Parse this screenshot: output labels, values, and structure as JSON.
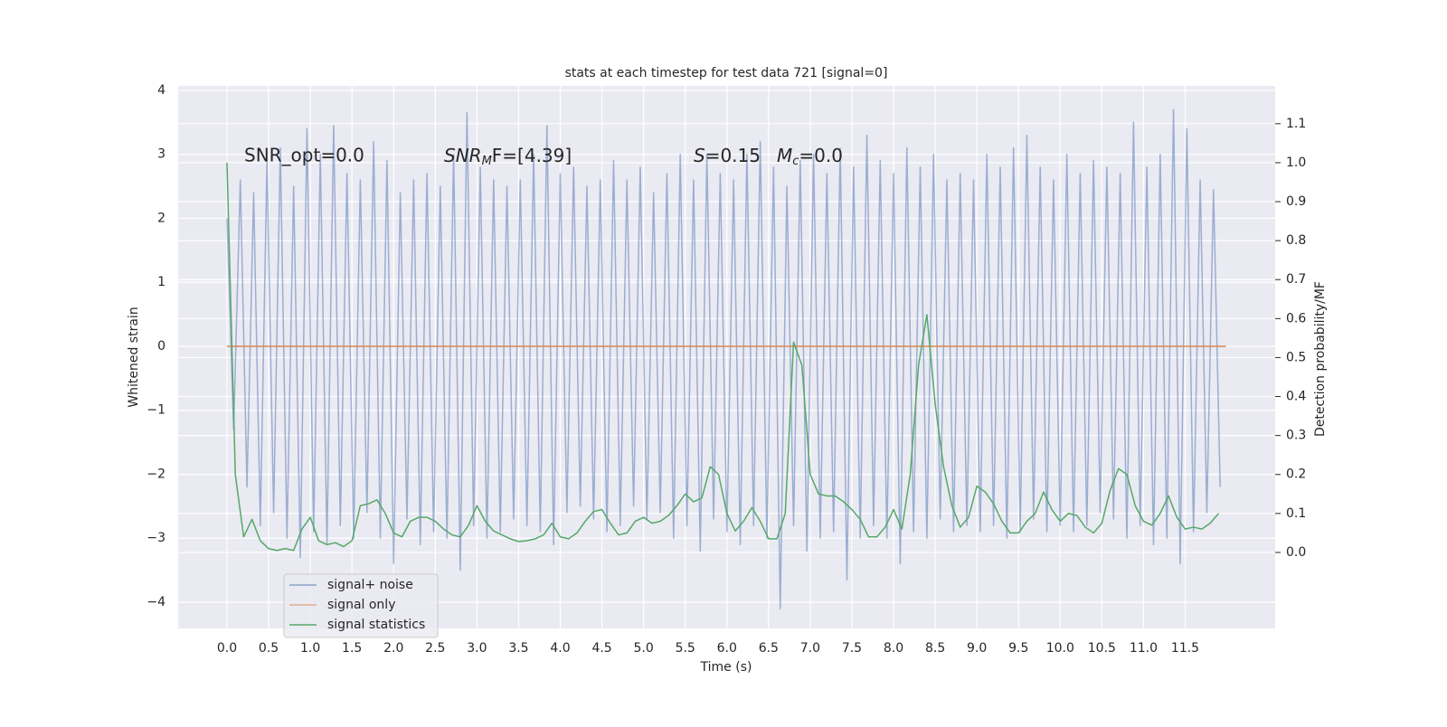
{
  "chart_data": {
    "type": "line",
    "title": "stats at each timestep for test data 721 [signal=0]",
    "xlabel": "Time (s)",
    "ylabel": "Whitened strain",
    "y2label": "Detection probability/MF",
    "grid": true,
    "legend": "lower left",
    "xlim": [
      -0.586,
      12.58
    ],
    "ylim": [
      -4.41,
      4.07
    ],
    "y2lim": [
      -0.195,
      1.197
    ],
    "xticks": [
      {
        "value": 0,
        "label": "0.0"
      },
      0.5,
      {
        "value": 1,
        "label": "1.0"
      },
      1.5,
      {
        "value": 2,
        "label": "2.0"
      },
      2.5,
      {
        "value": 3,
        "label": "3.0"
      },
      3.5,
      {
        "value": 4,
        "label": "4.0"
      },
      4.5,
      {
        "value": 5,
        "label": "5.0"
      },
      5.5,
      {
        "value": 6,
        "label": "6.0"
      },
      6.5,
      {
        "value": 7,
        "label": "7.0"
      },
      7.5,
      {
        "value": 8,
        "label": "8.0"
      },
      8.5,
      {
        "value": 9,
        "label": "9.0"
      },
      9.5,
      {
        "value": 10,
        "label": "10.0"
      },
      10.5,
      {
        "value": 11,
        "label": "11.0"
      },
      11.5
    ],
    "yticks": [
      {
        "value": -4,
        "label": "−4"
      },
      {
        "value": -3,
        "label": "−3"
      },
      {
        "value": -2,
        "label": "−2"
      },
      {
        "value": -1,
        "label": "−1"
      },
      0,
      1,
      2,
      3,
      4
    ],
    "y2ticks": [
      {
        "value": 0,
        "label": "0.0"
      },
      0.1,
      0.2,
      0.3,
      0.4,
      0.5,
      0.6,
      0.7,
      0.8,
      0.9,
      {
        "value": 1,
        "label": "1.0"
      },
      1.1
    ],
    "annotations": [
      {
        "text": "SNR_opt=0.0"
      },
      {
        "base": "SNR",
        "sub": "M",
        "rest": "F=[4.39]"
      },
      {
        "base": "S",
        "rest": "=0.15"
      },
      {
        "base": "M",
        "sub": "c",
        "rest": "=0.0"
      }
    ],
    "series": [
      {
        "name": "signal+ noise",
        "color": "#4c72b0",
        "x": [
          0,
          0.08,
          0.16,
          0.24,
          0.32,
          0.4,
          0.48,
          0.56,
          0.64,
          0.72,
          0.8,
          0.88,
          0.96,
          1.04,
          1.12,
          1.2,
          1.28,
          1.36,
          1.44,
          1.52,
          1.6,
          1.68,
          1.76,
          1.84,
          1.92,
          2,
          2.08,
          2.16,
          2.24,
          2.32,
          2.4,
          2.48,
          2.56,
          2.64,
          2.72,
          2.8,
          2.88,
          2.96,
          3.04,
          3.12,
          3.2,
          3.28,
          3.36,
          3.44,
          3.52,
          3.6,
          3.68,
          3.76,
          3.84,
          3.92,
          4,
          4.08,
          4.16,
          4.24,
          4.32,
          4.4,
          4.48,
          4.56,
          4.64,
          4.72,
          4.8,
          4.88,
          4.96,
          5.04,
          5.12,
          5.2,
          5.28,
          5.36,
          5.44,
          5.52,
          5.6,
          5.68,
          5.76,
          5.84,
          5.92,
          6,
          6.08,
          6.16,
          6.24,
          6.32,
          6.4,
          6.48,
          6.56,
          6.64,
          6.72,
          6.8,
          6.88,
          6.96,
          7.04,
          7.12,
          7.2,
          7.28,
          7.36,
          7.44,
          7.52,
          7.6,
          7.68,
          7.76,
          7.84,
          7.92,
          8,
          8.08,
          8.16,
          8.24,
          8.32,
          8.4,
          8.48,
          8.56,
          8.64,
          8.72,
          8.8,
          8.88,
          8.96,
          9.04,
          9.12,
          9.2,
          9.28,
          9.36,
          9.44,
          9.52,
          9.6,
          9.68,
          9.76,
          9.84,
          9.92,
          10,
          10.08,
          10.16,
          10.24,
          10.32,
          10.4,
          10.48,
          10.56,
          10.64,
          10.72,
          10.8,
          10.88,
          10.96,
          11.04,
          11.12,
          11.2,
          11.28,
          11.36,
          11.44,
          11.52,
          11.6,
          11.68,
          11.76,
          11.84,
          11.92
        ],
        "values": [
          2.0,
          -1.3,
          2.6,
          -2.2,
          2.4,
          -2.8,
          2.9,
          -2.6,
          3.1,
          -3.0,
          2.5,
          -3.3,
          3.4,
          -2.9,
          3.0,
          -3.1,
          3.45,
          -2.8,
          2.7,
          -3.0,
          2.6,
          -2.6,
          3.2,
          -3.0,
          2.9,
          -3.4,
          2.4,
          -2.7,
          2.6,
          -3.1,
          2.7,
          -2.9,
          2.5,
          -3.0,
          3.0,
          -3.5,
          3.65,
          -2.8,
          2.8,
          -3.0,
          2.6,
          -2.9,
          2.5,
          -2.7,
          2.6,
          -2.8,
          3.0,
          -2.9,
          3.45,
          -3.1,
          2.7,
          -2.6,
          2.8,
          -2.5,
          2.5,
          -2.7,
          2.6,
          -2.9,
          2.9,
          -2.8,
          2.6,
          -2.5,
          2.8,
          -2.7,
          2.4,
          -2.6,
          2.7,
          -3.0,
          3.0,
          -2.8,
          2.6,
          -3.2,
          3.0,
          -2.7,
          2.7,
          -2.9,
          2.6,
          -3.1,
          3.0,
          -2.8,
          3.2,
          -3.0,
          2.8,
          -4.1,
          2.5,
          -2.8,
          2.9,
          -3.2,
          3.0,
          -3.0,
          2.7,
          -2.9,
          3.1,
          -3.65,
          2.8,
          -3.0,
          3.3,
          -2.8,
          2.9,
          -3.0,
          2.7,
          -3.4,
          3.1,
          -2.9,
          2.8,
          -3.0,
          3.0,
          -2.7,
          2.6,
          -2.9,
          2.7,
          -2.8,
          2.6,
          -2.9,
          3.0,
          -2.8,
          2.8,
          -3.0,
          3.1,
          -2.9,
          3.3,
          -2.7,
          2.8,
          -2.9,
          2.6,
          -2.8,
          3.0,
          -2.9,
          2.7,
          -2.8,
          2.9,
          -2.6,
          2.8,
          -2.7,
          2.7,
          -3.0,
          3.5,
          -2.8,
          2.8,
          -3.1,
          3.0,
          -3.0,
          3.7,
          -3.4,
          3.4,
          -2.9,
          2.6,
          -2.6,
          2.45,
          -2.2
        ]
      },
      {
        "name": "signal only",
        "color": "#dd8452",
        "x": [
          0,
          11.99
        ],
        "values": [
          0,
          0
        ]
      },
      {
        "name": "signal statistics",
        "color": "#55a868",
        "axis": "y2",
        "x": [
          0,
          0.1,
          0.2,
          0.3,
          0.4,
          0.5,
          0.6,
          0.7,
          0.8,
          0.9,
          1,
          1.1,
          1.2,
          1.3,
          1.4,
          1.5,
          1.6,
          1.7,
          1.8,
          1.9,
          2,
          2.1,
          2.2,
          2.3,
          2.4,
          2.5,
          2.6,
          2.7,
          2.8,
          2.9,
          3,
          3.1,
          3.2,
          3.3,
          3.4,
          3.5,
          3.6,
          3.7,
          3.8,
          3.9,
          4,
          4.1,
          4.2,
          4.3,
          4.4,
          4.5,
          4.6,
          4.7,
          4.8,
          4.9,
          5,
          5.1,
          5.2,
          5.3,
          5.4,
          5.5,
          5.6,
          5.7,
          5.8,
          5.9,
          6,
          6.1,
          6.2,
          6.3,
          6.4,
          6.5,
          6.6,
          6.7,
          6.8,
          6.9,
          7,
          7.1,
          7.2,
          7.3,
          7.4,
          7.5,
          7.6,
          7.7,
          7.8,
          7.9,
          8,
          8.1,
          8.2,
          8.3,
          8.4,
          8.5,
          8.6,
          8.7,
          8.8,
          8.9,
          9,
          9.1,
          9.2,
          9.3,
          9.4,
          9.5,
          9.6,
          9.7,
          9.8,
          9.9,
          10,
          10.1,
          10.2,
          10.3,
          10.4,
          10.5,
          10.6,
          10.7,
          10.8,
          10.9,
          11,
          11.1,
          11.2,
          11.3,
          11.4,
          11.5,
          11.6,
          11.7,
          11.8,
          11.9
        ],
        "values": [
          1.0,
          0.2,
          0.04,
          0.085,
          0.03,
          0.01,
          0.005,
          0.01,
          0.005,
          0.06,
          0.09,
          0.03,
          0.02,
          0.025,
          0.015,
          0.03,
          0.12,
          0.125,
          0.135,
          0.1,
          0.05,
          0.04,
          0.08,
          0.09,
          0.09,
          0.08,
          0.06,
          0.045,
          0.04,
          0.07,
          0.12,
          0.08,
          0.055,
          0.045,
          0.035,
          0.028,
          0.03,
          0.035,
          0.045,
          0.075,
          0.04,
          0.035,
          0.05,
          0.08,
          0.105,
          0.11,
          0.075,
          0.045,
          0.05,
          0.08,
          0.09,
          0.075,
          0.08,
          0.095,
          0.12,
          0.15,
          0.13,
          0.14,
          0.22,
          0.2,
          0.1,
          0.055,
          0.08,
          0.115,
          0.08,
          0.035,
          0.035,
          0.1,
          0.54,
          0.48,
          0.2,
          0.15,
          0.145,
          0.145,
          0.13,
          0.11,
          0.085,
          0.04,
          0.04,
          0.065,
          0.11,
          0.06,
          0.2,
          0.48,
          0.61,
          0.38,
          0.22,
          0.12,
          0.065,
          0.09,
          0.17,
          0.155,
          0.125,
          0.08,
          0.05,
          0.05,
          0.08,
          0.1,
          0.155,
          0.11,
          0.08,
          0.1,
          0.095,
          0.065,
          0.05,
          0.075,
          0.16,
          0.215,
          0.2,
          0.12,
          0.08,
          0.07,
          0.1,
          0.145,
          0.09,
          0.06,
          0.065,
          0.06,
          0.075,
          0.1
        ]
      }
    ]
  }
}
